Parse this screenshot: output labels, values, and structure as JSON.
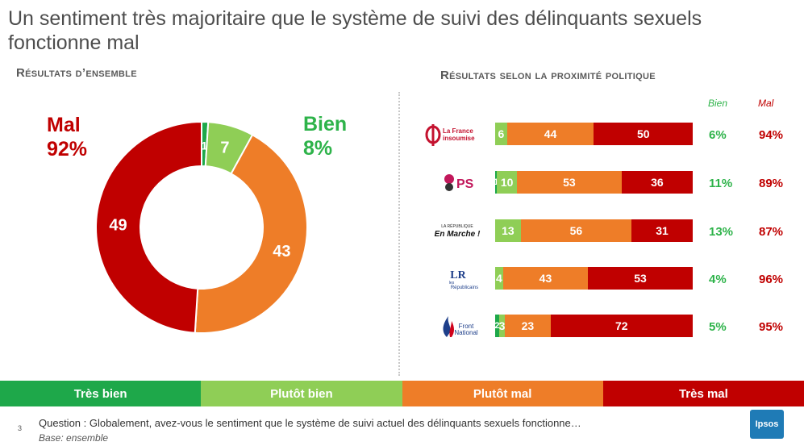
{
  "title": "Un sentiment très majoritaire que le système de suivi des délinquants sexuels fonctionne mal",
  "left_subtitle": "Résultats d’ensemble",
  "right_subtitle": "Résultats selon la proximité politique",
  "big_labels": {
    "mal_word": "Mal",
    "mal_pct": "92%",
    "bien_word": "Bien",
    "bien_pct": "8%"
  },
  "column_headers": {
    "bien": "Bien",
    "mal": "Mal"
  },
  "legend": {
    "tres_bien": "Très bien",
    "plutot_bien": "Plutôt bien",
    "plutot_mal": "Plutôt mal",
    "tres_mal": "Très mal"
  },
  "colors": {
    "tres_bien": "#1ea84a",
    "plutot_bien": "#8fce56",
    "plutot_mal": "#ee7d28",
    "tres_mal": "#c00000"
  },
  "footer": {
    "page_number": "3",
    "question": "Question : Globalement, avez-vous le sentiment que le système de suivi actuel des délinquants sexuels fonctionne…",
    "base": "Base: ensemble",
    "brand": "Ipsos"
  },
  "logos": {
    "lfi_line1": "La France",
    "lfi_line2": "insoumise",
    "ps_text": "PS",
    "em_line1": "LA RÉPUBLIQUE",
    "em_line2": "En Marche !",
    "lr_text": "LR",
    "lr_line1": "les",
    "lr_line2": "Républicains",
    "fn_line1": "Front",
    "fn_line2": "National"
  },
  "chart_data": [
    {
      "type": "pie",
      "variant": "donut",
      "categories": [
        "Très bien",
        "Plutôt bien",
        "Plutôt mal",
        "Très mal"
      ],
      "values": [
        1,
        7,
        43,
        49
      ],
      "colors": [
        "#1ea84a",
        "#8fce56",
        "#ee7d28",
        "#c00000"
      ]
    },
    {
      "type": "bar",
      "orientation": "horizontal",
      "stacked": true,
      "categories": [
        "La France insoumise",
        "PS",
        "En Marche !",
        "Les Républicains",
        "Front National"
      ],
      "series": [
        {
          "name": "Très bien",
          "values": [
            0,
            1,
            0,
            0,
            2
          ]
        },
        {
          "name": "Plutôt bien",
          "values": [
            6,
            10,
            13,
            4,
            3
          ]
        },
        {
          "name": "Plutôt mal",
          "values": [
            44,
            53,
            56,
            43,
            23
          ]
        },
        {
          "name": "Très mal",
          "values": [
            50,
            36,
            31,
            53,
            72
          ]
        }
      ],
      "totals_bien": [
        "6%",
        "11%",
        "13%",
        "4%",
        "5%"
      ],
      "totals_mal": [
        "94%",
        "89%",
        "87%",
        "96%",
        "95%"
      ]
    }
  ]
}
